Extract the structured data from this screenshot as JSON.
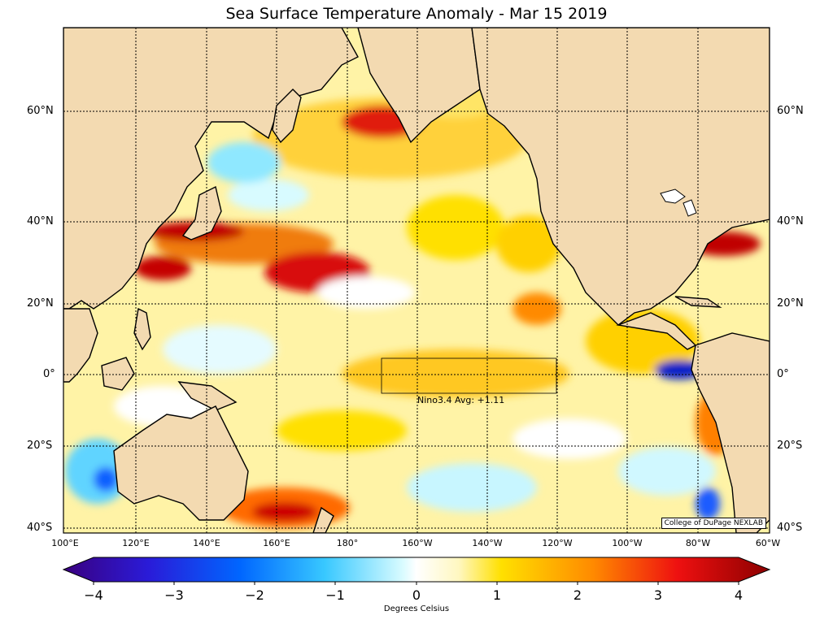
{
  "title": "Sea Surface Temperature Anomaly - Mar 15 2019",
  "lat_labels": [
    "60°N",
    "40°N",
    "20°N",
    "0°",
    "20°S",
    "40°S"
  ],
  "lon_labels": [
    "100°E",
    "120°E",
    "140°E",
    "160°E",
    "180°",
    "160°W",
    "140°W",
    "120°W",
    "100°W",
    "80°W",
    "60°W"
  ],
  "nino_label": "Nino3.4 Avg: +1.11",
  "credit": "College of DuPage NEXLAB",
  "colorbar": {
    "ticks": [
      "−4",
      "−3",
      "−2",
      "−1",
      "0",
      "1",
      "2",
      "3",
      "4"
    ],
    "title": "Degrees Celsius"
  },
  "colors": {
    "land": "#f3dab1",
    "ocean_base": "#fff4a0"
  }
}
